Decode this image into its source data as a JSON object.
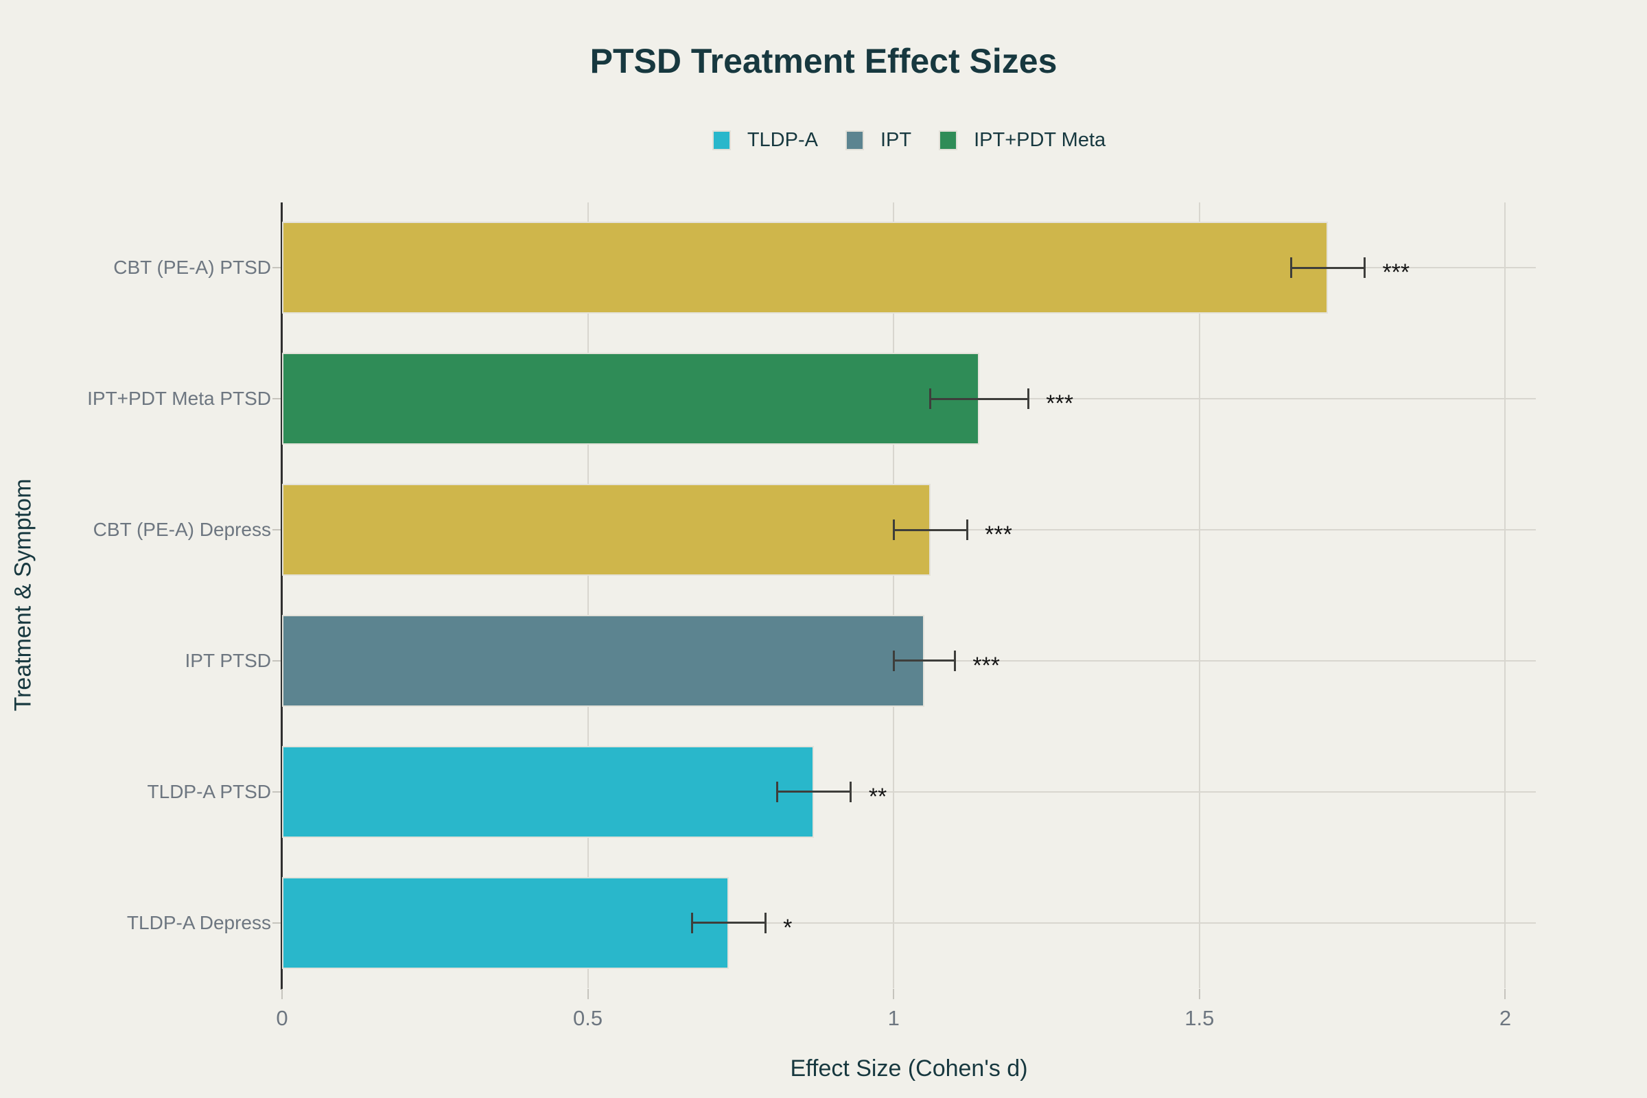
{
  "title": "PTSD Treatment Effect Sizes",
  "legend": {
    "position": "top-center",
    "items": [
      {
        "label": "TLDP-A",
        "color": "#29b7cb"
      },
      {
        "label": "IPT",
        "color": "#5c8490"
      },
      {
        "label": "IPT+PDT Meta",
        "color": "#2f8c57"
      }
    ]
  },
  "chart_data": {
    "type": "bar",
    "orientation": "horizontal",
    "title": "PTSD Treatment Effect Sizes",
    "xlabel": "Effect Size (Cohen's d)",
    "ylabel": "Treatment & Symptom",
    "xlim": [
      0,
      2.05
    ],
    "xticks": [
      0,
      0.5,
      1,
      1.5,
      2
    ],
    "xtick_labels": [
      "0",
      "0.5",
      "1",
      "1.5",
      "2"
    ],
    "grid": true,
    "categories": [
      "CBT (PE-A) PTSD",
      "IPT+PDT Meta PTSD",
      "CBT (PE-A) Depress",
      "IPT PTSD",
      "TLDP-A PTSD",
      "TLDP-A Depress"
    ],
    "values": [
      1.71,
      1.14,
      1.06,
      1.05,
      0.87,
      0.73
    ],
    "errors": [
      0.06,
      0.08,
      0.06,
      0.05,
      0.06,
      0.06
    ],
    "significance": [
      "***",
      "***",
      "***",
      "***",
      "**",
      "*"
    ],
    "bar_colors": [
      "#cfb64b",
      "#2f8c57",
      "#cfb64b",
      "#5c8490",
      "#29b7cb",
      "#29b7cb"
    ],
    "series_color_map": {
      "TLDP-A": "#29b7cb",
      "IPT": "#5c8490",
      "IPT+PDT Meta": "#2f8c57",
      "CBT (PE-A)": "#cfb64b"
    }
  },
  "colors": {
    "background": "#f1f0ea",
    "title_text": "#17383f",
    "tick_text": "#6d7680",
    "gridline": "#d8d6cf",
    "axis_line": "#2f2f2f",
    "tick_mark": "#c6c4bd",
    "error_bar": "#3e3e3b",
    "annotation_text": "#141414",
    "bar_stroke": "#e4e2da"
  }
}
